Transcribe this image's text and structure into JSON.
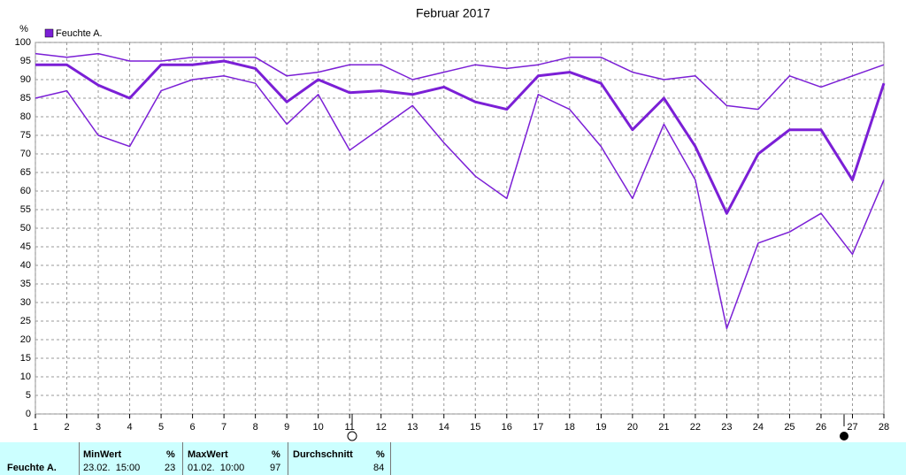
{
  "chart_data": {
    "type": "line",
    "title": "Februar 2017",
    "y_label": "%",
    "x": [
      1,
      2,
      3,
      4,
      5,
      6,
      7,
      8,
      9,
      10,
      11,
      12,
      13,
      14,
      15,
      16,
      17,
      18,
      19,
      20,
      21,
      22,
      23,
      24,
      25,
      26,
      27,
      28
    ],
    "xlim": [
      1,
      28
    ],
    "xticks": [
      1,
      2,
      3,
      4,
      5,
      6,
      7,
      8,
      9,
      10,
      11,
      12,
      13,
      14,
      15,
      16,
      17,
      18,
      19,
      20,
      21,
      22,
      23,
      24,
      25,
      26,
      27,
      28
    ],
    "ylim": [
      0,
      100
    ],
    "yticks": [
      0,
      5,
      10,
      15,
      20,
      25,
      30,
      35,
      40,
      45,
      50,
      55,
      60,
      65,
      70,
      75,
      80,
      85,
      90,
      95,
      100
    ],
    "grid": true,
    "legend": "top-left",
    "series": [
      {
        "name": "Feuchte A.",
        "color": "#7b1fd6",
        "values": [
          94,
          94,
          88.5,
          85,
          94,
          94,
          95,
          93,
          84,
          90,
          86.5,
          87,
          86,
          88,
          84,
          82,
          91,
          92,
          89,
          76.5,
          85,
          72,
          54,
          70,
          76.5,
          76.5,
          63,
          89
        ],
        "max_values": [
          97,
          96,
          97,
          95,
          95,
          96,
          96,
          96,
          91,
          92,
          94,
          94,
          90,
          92,
          94,
          93,
          94,
          96,
          96,
          92,
          90,
          91,
          83,
          82,
          91,
          88,
          91,
          94
        ],
        "min_values": [
          85,
          87,
          75,
          72,
          87,
          90,
          91,
          89,
          78,
          86,
          71,
          77,
          83,
          73,
          64,
          58,
          86,
          82,
          72,
          58,
          78,
          63,
          23,
          46,
          49,
          54,
          43,
          63
        ]
      }
    ]
  },
  "table": {
    "row_label": "Feuchte A.",
    "columns": [
      {
        "title": "MinWert",
        "unit": "%",
        "time": "23.02.  15:00",
        "value": 23
      },
      {
        "title": "MaxWert",
        "unit": "%",
        "time": "01.02.  10:00",
        "value": 97
      },
      {
        "title": "Durchschnitt",
        "unit": "%",
        "value": 84
      }
    ]
  }
}
